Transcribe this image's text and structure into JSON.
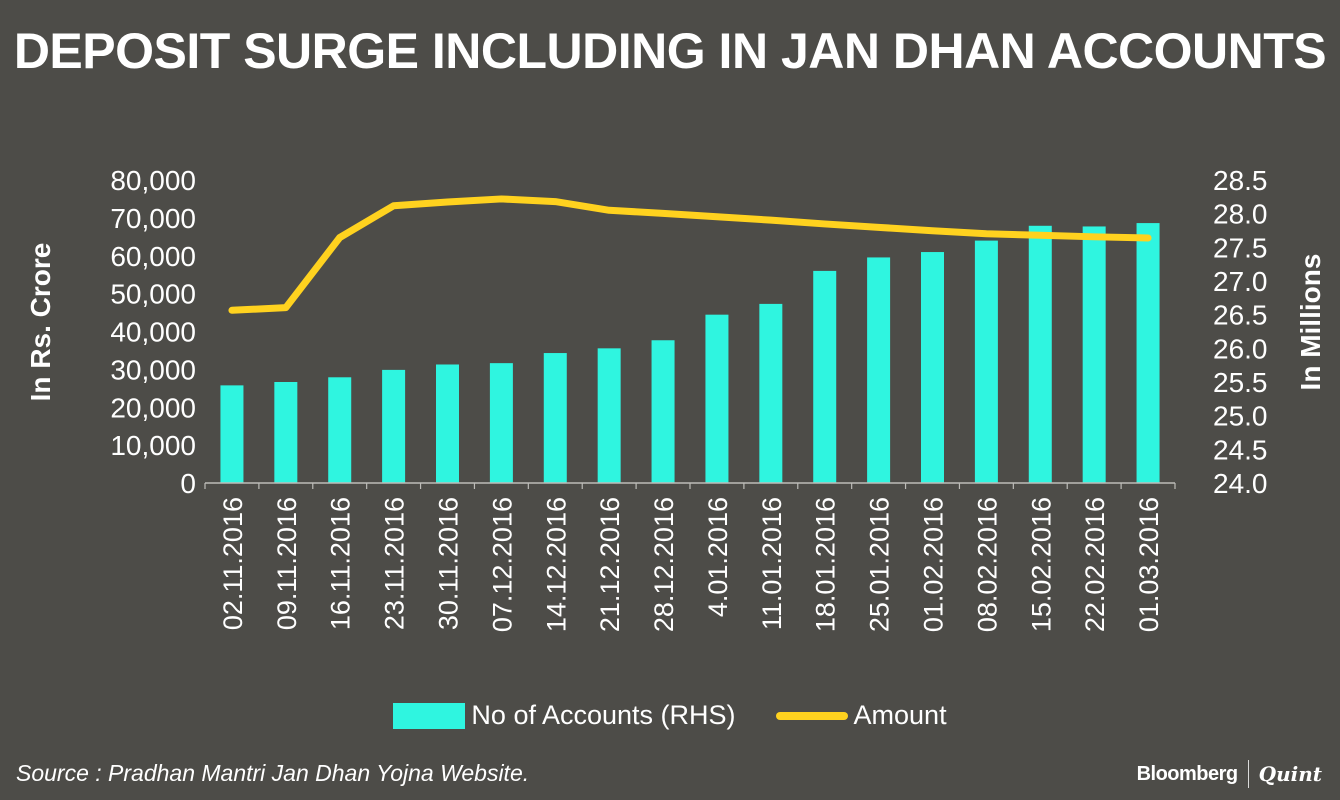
{
  "title": "DEPOSIT SURGE INCLUDING IN JAN DHAN ACCOUNTS",
  "source": "Source : Pradhan Mantri Jan Dhan Yojna Website.",
  "brand": {
    "primary": "Bloomberg",
    "secondary": "Quint"
  },
  "colors": {
    "background": "#4d4c48",
    "bars": "#2ff5e0",
    "line": "#ffd21f",
    "text": "#ffffff"
  },
  "chart_data": {
    "type": "bar",
    "categories": [
      "02.11.2016",
      "09.11.2016",
      "16.11.2016",
      "23.11.2016",
      "30.11.2016",
      "07.12.2016",
      "14.12.2016",
      "21.12.2016",
      "28.12.2016",
      "4.01.2016",
      "11.01.2016",
      "18.01.2016",
      "25.01.2016",
      "01.02.2016",
      "08.02.2016",
      "15.02.2016",
      "22.02.2016",
      "01.03.2016"
    ],
    "series": [
      {
        "name": "No of Accounts (RHS)",
        "kind": "bar",
        "axis": "right",
        "values": [
          25.45,
          25.5,
          25.57,
          25.68,
          25.76,
          25.78,
          25.93,
          26.0,
          26.12,
          26.5,
          26.66,
          27.15,
          27.35,
          27.43,
          27.6,
          27.82,
          27.81,
          27.86
        ]
      },
      {
        "name": "Amount",
        "kind": "line",
        "axis": "left",
        "values": [
          45600,
          46300,
          64800,
          73200,
          74200,
          75000,
          74300,
          72000,
          71200,
          70300,
          69400,
          68400,
          67500,
          66600,
          65800,
          65400,
          65000,
          64700
        ]
      }
    ],
    "ylabel": "In Rs. Crore",
    "ylabel_right": "In Millions",
    "ylim": [
      0,
      80000
    ],
    "ylim_right": [
      24.0,
      28.5
    ],
    "yticks": [
      "0",
      "10,000",
      "20,000",
      "30,000",
      "40,000",
      "50,000",
      "60,000",
      "70,000",
      "80,000"
    ],
    "yticks_right": [
      "24.0",
      "24.5",
      "25.0",
      "25.5",
      "26.0",
      "26.5",
      "27.0",
      "27.5",
      "28.0",
      "28.5"
    ],
    "grid": false,
    "legend_position": "bottom"
  }
}
